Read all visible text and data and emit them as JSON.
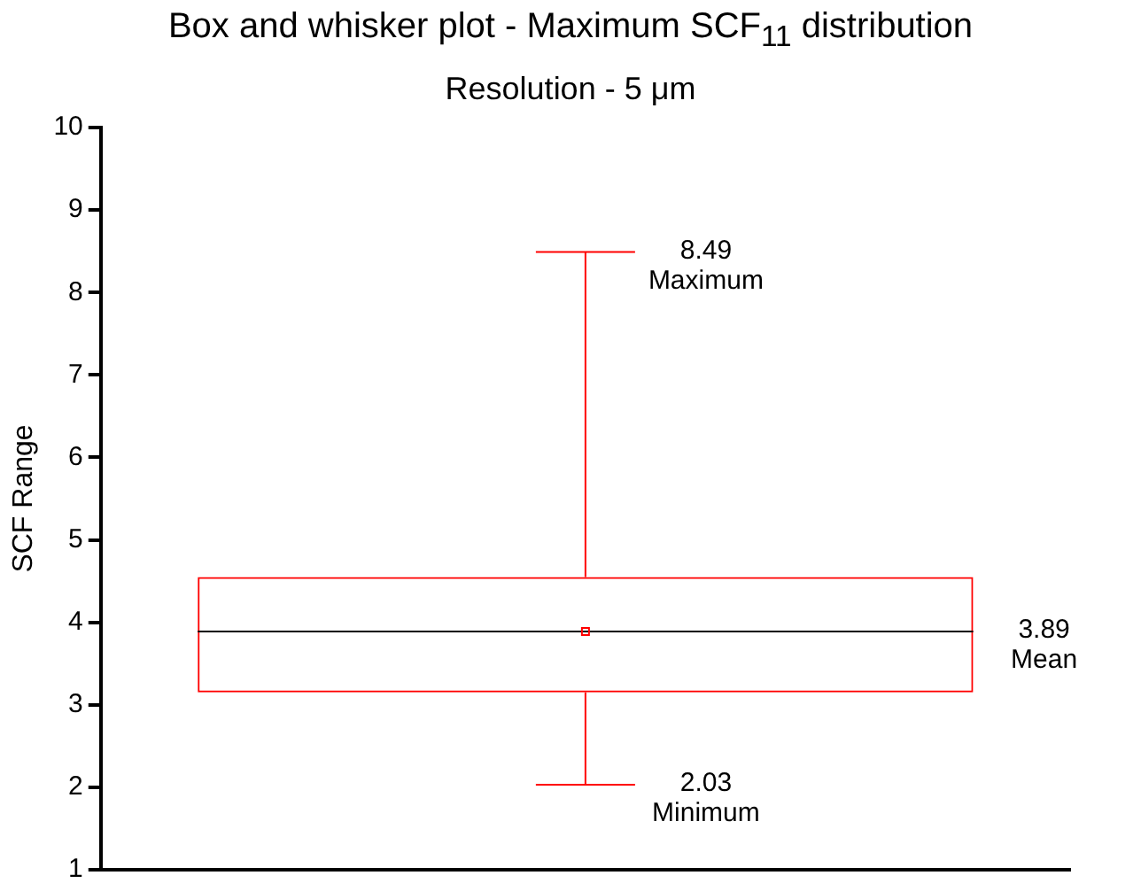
{
  "chart_data": {
    "type": "box",
    "title": "Box and whisker plot - Maximum SCF$_{11}$ distribution",
    "subtitle": "Resolution - 5 μm",
    "ylabel": "SCF Range",
    "categories": [
      null
    ],
    "color": "#ff0000",
    "boxes": [
      {
        "low": 2.03,
        "q1": 3.15,
        "median": 3.89,
        "q3": 4.55,
        "high": 8.49,
        "mean": 3.89
      }
    ],
    "ylim": [
      1,
      10
    ],
    "yticks": [
      1,
      2,
      3,
      4,
      5,
      6,
      7,
      8,
      9,
      10
    ],
    "tick_labels": "y",
    "grid": false,
    "legend": false,
    "annotations": [
      "8.49\nMaximum",
      "3.89\nMean",
      "2.03\nMinimum"
    ]
  }
}
